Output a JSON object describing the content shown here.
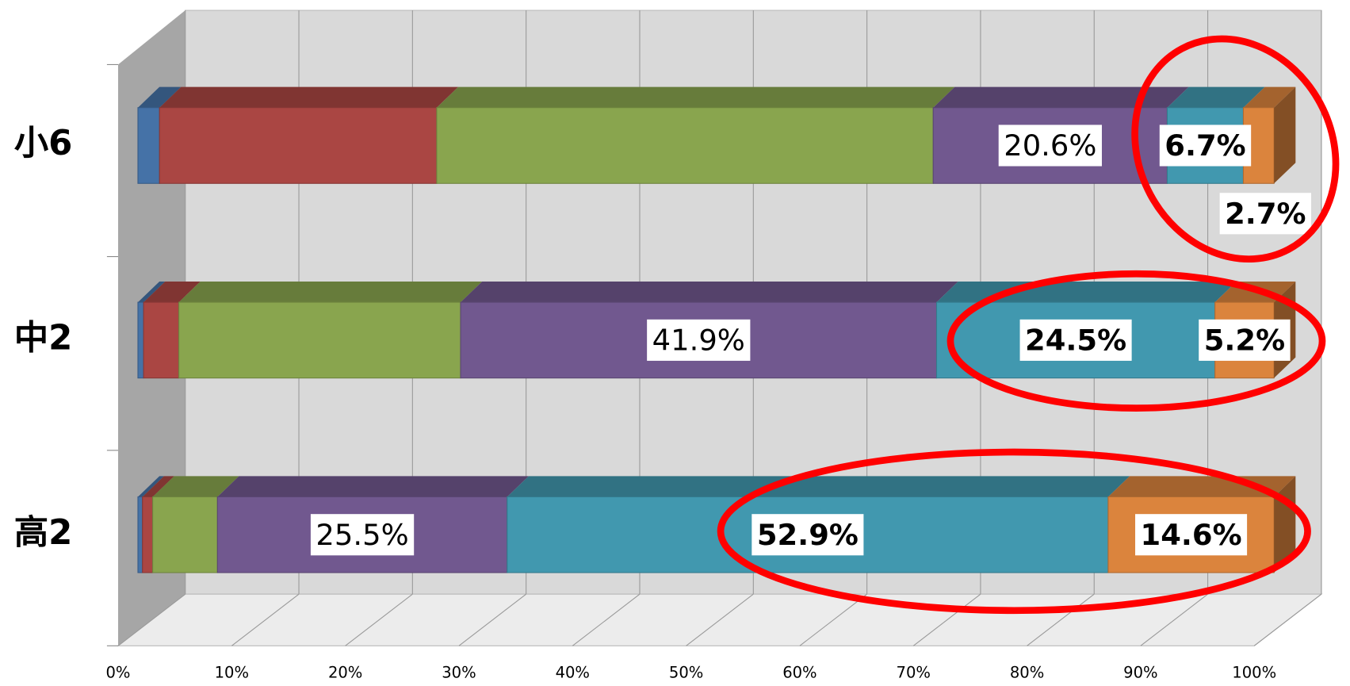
{
  "chart_data": {
    "type": "bar3d-stacked-horizontal",
    "categories": [
      "小6",
      "中2",
      "高2"
    ],
    "series": [
      {
        "color": "#4572a7",
        "values": [
          1.9,
          0.5,
          0.4
        ]
      },
      {
        "color": "#aa4643",
        "values": [
          24.4,
          3.1,
          0.9
        ]
      },
      {
        "color": "#89a54e",
        "values": [
          43.7,
          24.8,
          5.7
        ]
      },
      {
        "color": "#71588f",
        "values": [
          20.6,
          41.9,
          25.5
        ],
        "value_labels": [
          "20.6%",
          "41.9%",
          "25.5%"
        ],
        "bold": false
      },
      {
        "color": "#4198af",
        "values": [
          6.7,
          24.5,
          52.9
        ],
        "value_labels": [
          "6.7%",
          "24.5%",
          "52.9%"
        ],
        "bold": true
      },
      {
        "color": "#db843d",
        "values": [
          2.7,
          5.2,
          14.6
        ],
        "value_labels": [
          "2.7%",
          "5.2%",
          "14.6%"
        ],
        "bold": true
      }
    ],
    "xlim": [
      0,
      100
    ],
    "xticks": [
      {
        "value": 0,
        "label": "0%"
      },
      {
        "value": 10,
        "label": "10%"
      },
      {
        "value": 20,
        "label": "20%"
      },
      {
        "value": 30,
        "label": "30%"
      },
      {
        "value": 40,
        "label": "40%"
      },
      {
        "value": 50,
        "label": "50%"
      },
      {
        "value": 60,
        "label": "60%"
      },
      {
        "value": 70,
        "label": "70%"
      },
      {
        "value": 80,
        "label": "80%"
      },
      {
        "value": 90,
        "label": "90%"
      },
      {
        "value": 100,
        "label": "100%"
      }
    ],
    "grid": true
  }
}
